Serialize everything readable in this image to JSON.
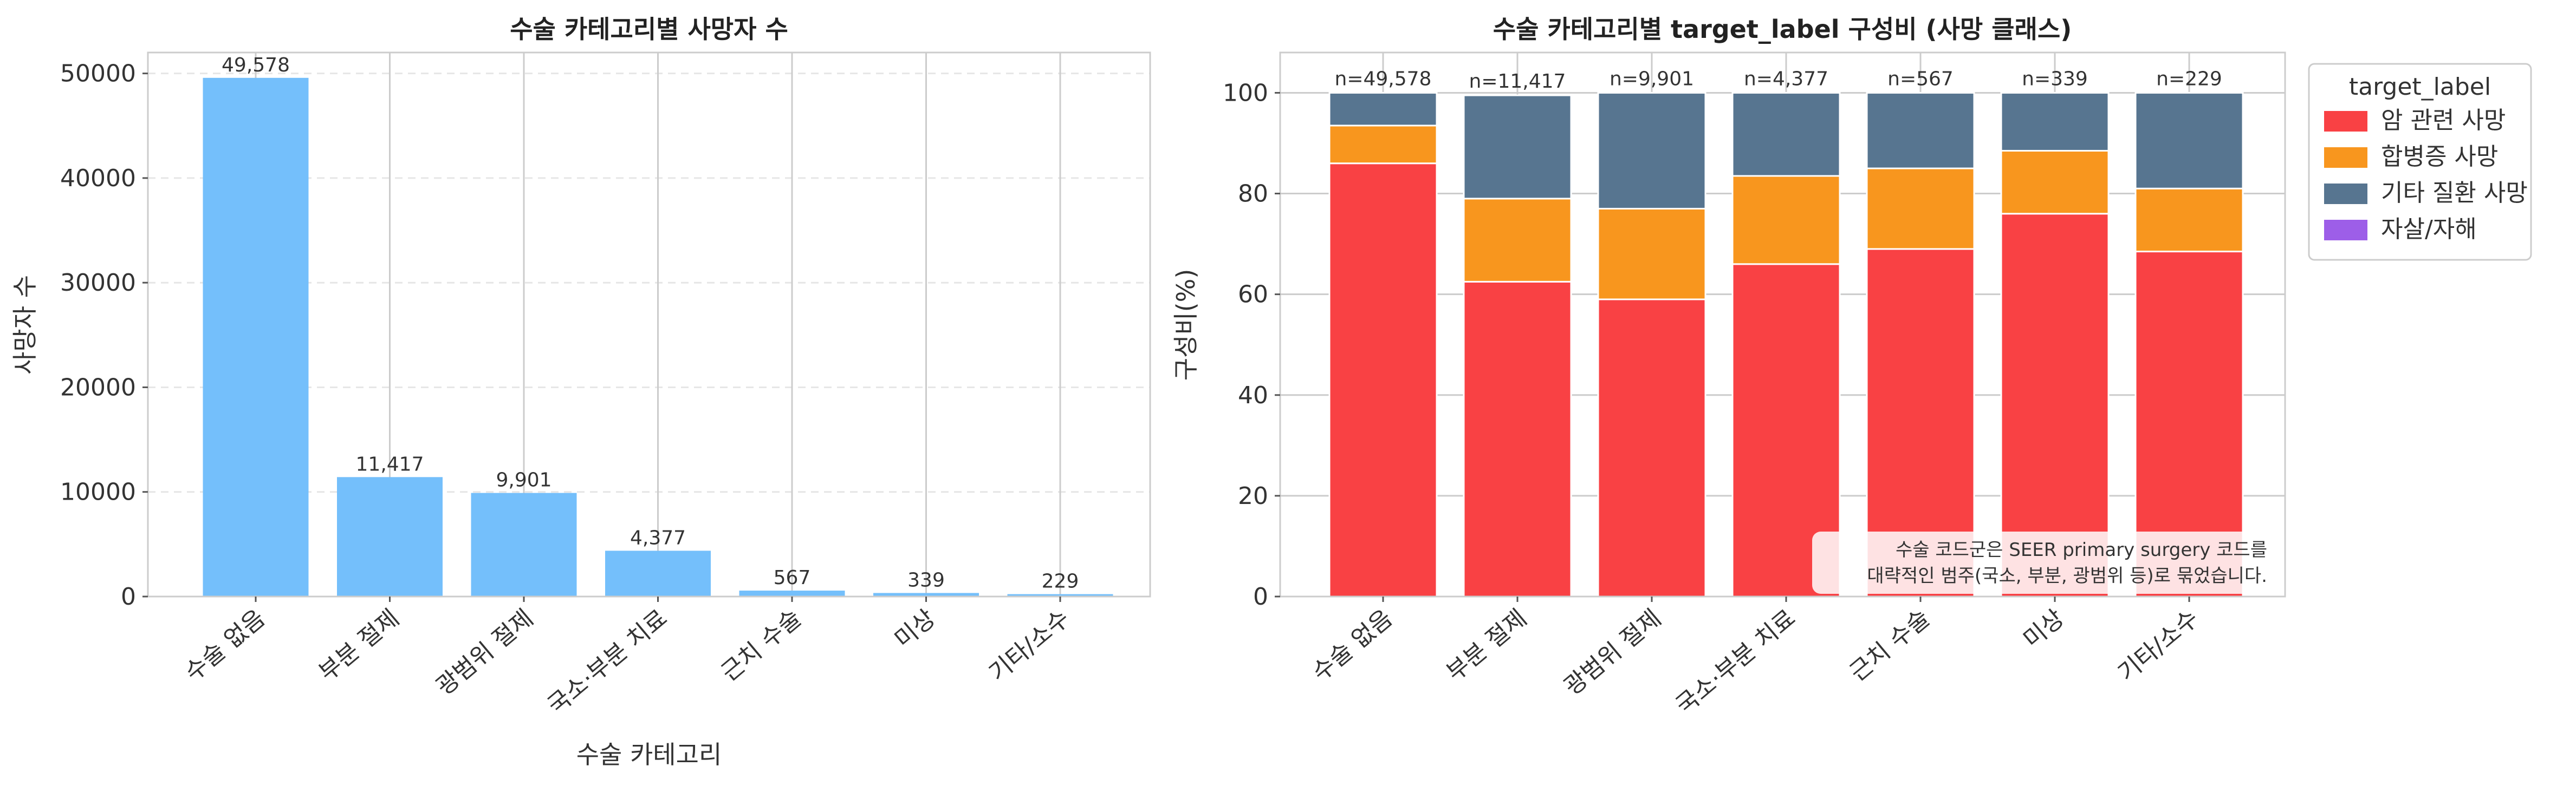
{
  "chart_data": [
    {
      "type": "bar",
      "title": "수술 카테고리별 사망자 수",
      "xlabel": "수술 카테고리",
      "ylabel": "사망자 수",
      "categories": [
        "수술 없음",
        "부분 절제",
        "광범위 절제",
        "국소·부분 치료",
        "근치 수술",
        "미상",
        "기타/소수"
      ],
      "values": [
        49578,
        11417,
        9901,
        4377,
        567,
        339,
        229
      ],
      "value_labels": [
        "49,578",
        "11,417",
        "9,901",
        "4,377",
        "567",
        "339",
        "229"
      ],
      "ylim": [
        0,
        52000
      ],
      "yticks": [
        0,
        10000,
        20000,
        30000,
        40000,
        50000
      ],
      "ytick_labels": [
        "0",
        "10000",
        "20000",
        "30000",
        "40000",
        "50000"
      ],
      "grid": "y dashed",
      "color": "#74bffb"
    },
    {
      "type": "stacked_bar",
      "title": "수술 카테고리별 target_label 구성비 (사망 클래스)",
      "xlabel": "",
      "ylabel": "구성비(%)",
      "categories": [
        "수술 없음",
        "부분 절제",
        "광범위 절제",
        "국소·부분 치료",
        "근치 수술",
        "미상",
        "기타/소수"
      ],
      "n_labels": [
        "n=49,578",
        "n=11,417",
        "n=9,901",
        "n=4,377",
        "n=567",
        "n=339",
        "n=229"
      ],
      "ylim": [
        0,
        108
      ],
      "yticks": [
        0,
        20,
        40,
        60,
        80,
        100
      ],
      "ytick_labels": [
        "0",
        "20",
        "40",
        "60",
        "80",
        "100"
      ],
      "grid": "both",
      "series": [
        {
          "name": "암 관련 사망",
          "color": "#f94144",
          "values": [
            86,
            62.5,
            59,
            66,
            69,
            76,
            68.5
          ]
        },
        {
          "name": "합병증 사망",
          "color": "#f8961e",
          "values": [
            7.5,
            16.5,
            18,
            17.5,
            16,
            12.5,
            12.5
          ]
        },
        {
          "name": "기타 질환 사망",
          "color": "#577590",
          "values": [
            6.5,
            20.5,
            23,
            16.5,
            15,
            11.5,
            19
          ]
        },
        {
          "name": "자살/자해",
          "color": "#9d5ee8",
          "values": [
            0,
            0,
            0,
            0,
            0,
            0,
            0
          ]
        }
      ],
      "legend": {
        "title": "target_label",
        "placement": "outside upper-right"
      },
      "annotation": [
        "수술 코드군은 SEER primary surgery 코드를",
        "대략적인 범주(국소, 부분, 광범위 등)로 묶었습니다."
      ]
    }
  ]
}
